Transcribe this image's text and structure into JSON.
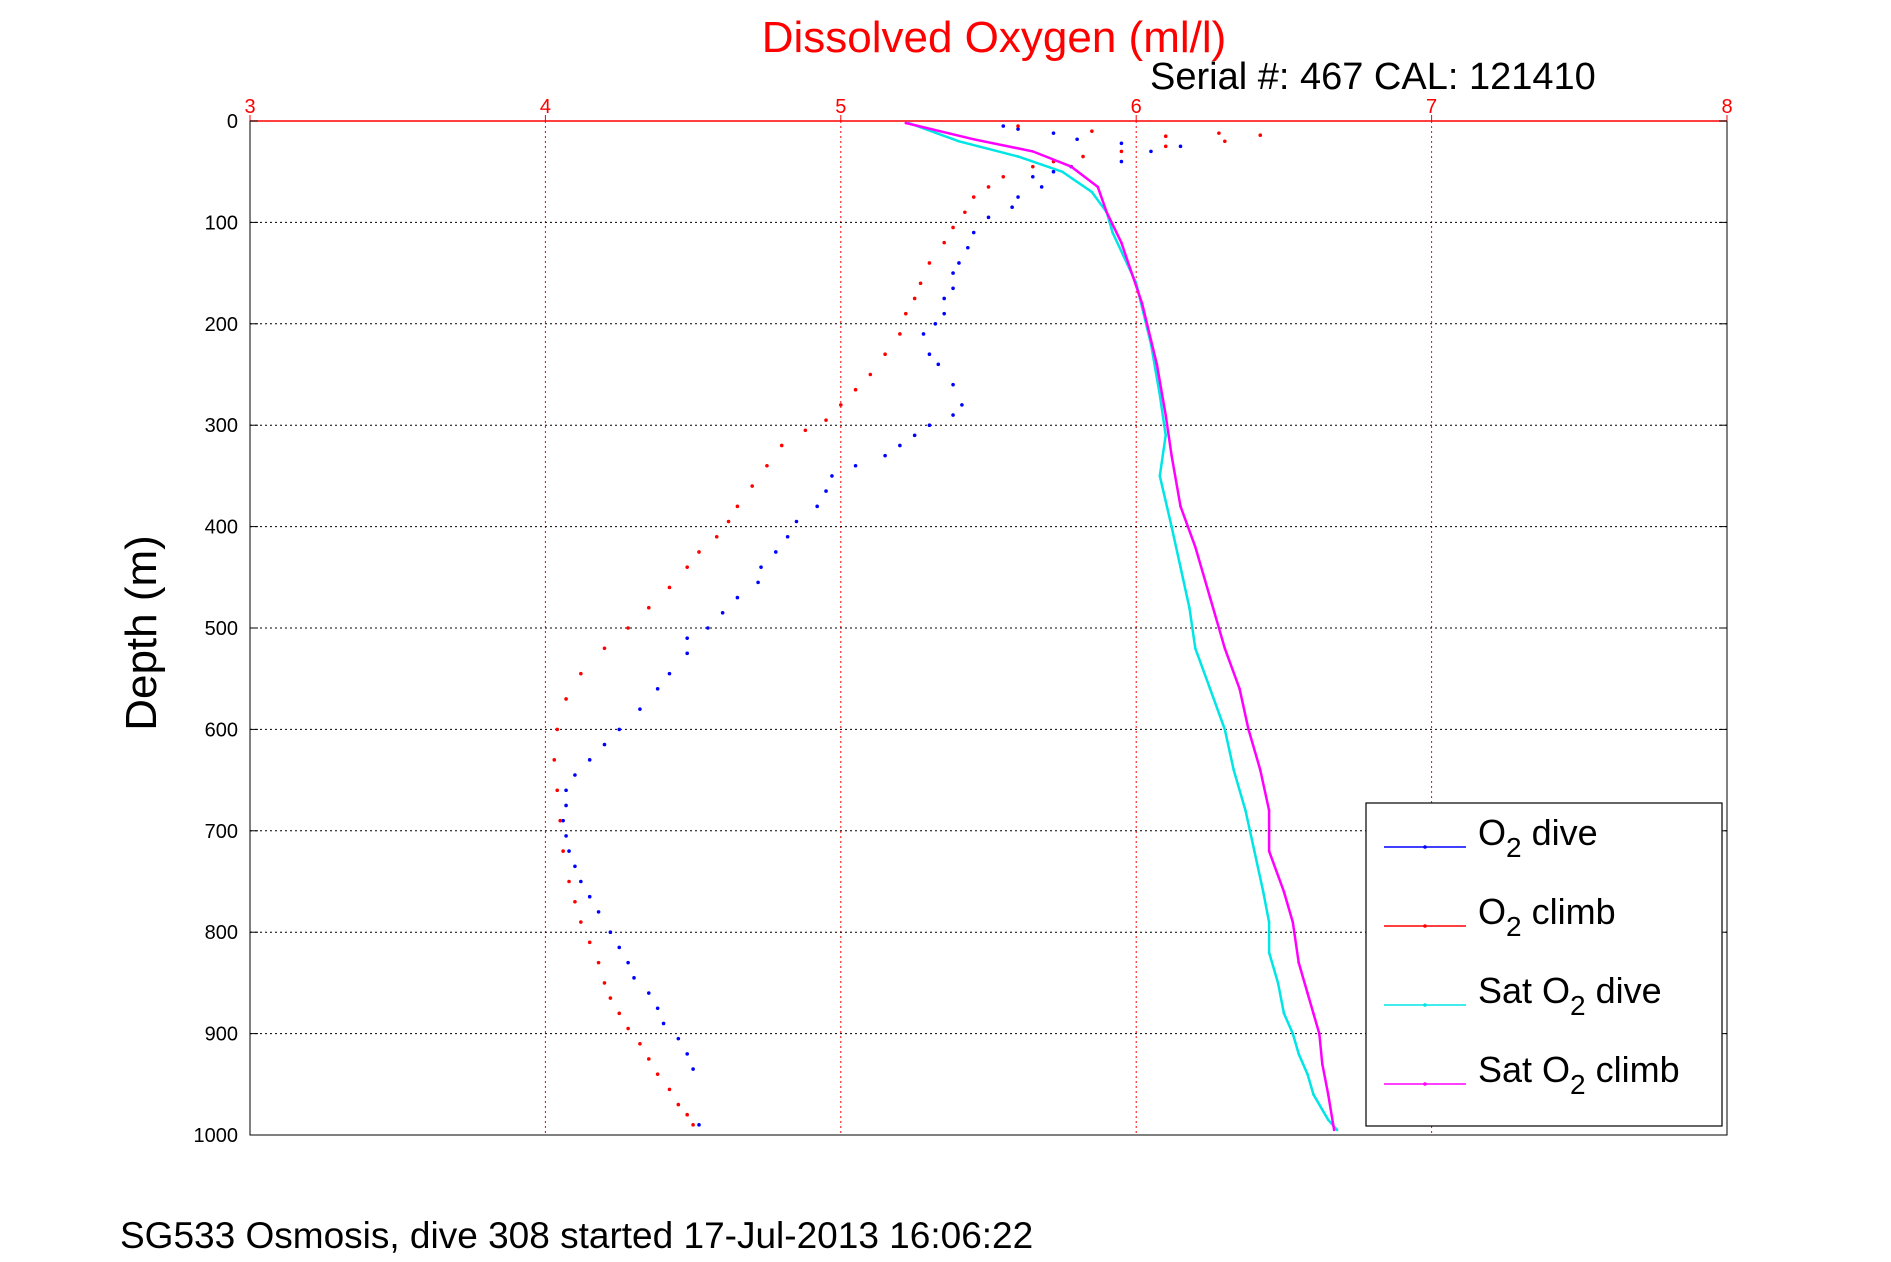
{
  "chart_data": {
    "type": "scatter",
    "title": "Dissolved Oxygen (ml/l)",
    "serial_label": "Serial #: 467  CAL: 121410",
    "footer": "SG533 Osmosis, dive 308 started 17-Jul-2013 16:06:22",
    "ylabel": "Depth (m)",
    "xlabel": "",
    "xlim": [
      3,
      8
    ],
    "ylim": [
      0,
      1000
    ],
    "y_reversed": true,
    "x_axis_position": "top",
    "xticks": [
      "3",
      "4",
      "5",
      "6",
      "7",
      "8"
    ],
    "yticks": [
      "0",
      "100",
      "200",
      "300",
      "400",
      "500",
      "600",
      "700",
      "800",
      "900",
      "1000"
    ],
    "grid": true,
    "legend_position": "bottom-right",
    "colors": {
      "title": "#ff0000",
      "x_axis": "#ff0000",
      "grid_x": "#ff0000",
      "grid_y": "#000000"
    },
    "series": [
      {
        "name": "O2 dive",
        "legend_main": "O",
        "legend_sub": "2",
        "legend_rest": " dive",
        "color": "#0000ff",
        "style": "dots",
        "x": [
          5.55,
          5.6,
          5.72,
          5.8,
          5.95,
          6.05,
          6.15,
          5.95,
          5.78,
          5.72,
          5.65,
          5.68,
          5.6,
          5.58,
          5.5,
          5.45,
          5.43,
          5.4,
          5.38,
          5.38,
          5.35,
          5.35,
          5.32,
          5.28,
          5.3,
          5.33,
          5.38,
          5.41,
          5.38,
          5.3,
          5.25,
          5.2,
          5.15,
          5.05,
          4.97,
          4.95,
          4.92,
          4.85,
          4.82,
          4.78,
          4.73,
          4.72,
          4.65,
          4.6,
          4.55,
          4.48,
          4.48,
          4.42,
          4.38,
          4.32,
          4.25,
          4.2,
          4.15,
          4.1,
          4.07,
          4.07,
          4.06,
          4.07,
          4.08,
          4.1,
          4.12,
          4.15,
          4.18,
          4.22,
          4.25,
          4.28,
          4.3,
          4.35,
          4.38,
          4.4,
          4.45,
          4.48,
          4.5,
          4.52
        ],
        "y": [
          5,
          8,
          12,
          18,
          22,
          30,
          25,
          40,
          45,
          50,
          55,
          65,
          75,
          85,
          95,
          110,
          125,
          140,
          150,
          165,
          175,
          190,
          200,
          210,
          230,
          240,
          260,
          280,
          290,
          300,
          310,
          320,
          330,
          340,
          350,
          365,
          380,
          395,
          410,
          425,
          440,
          455,
          470,
          485,
          500,
          510,
          525,
          545,
          560,
          580,
          600,
          615,
          630,
          645,
          660,
          675,
          690,
          705,
          720,
          735,
          750,
          765,
          780,
          800,
          815,
          830,
          845,
          860,
          875,
          890,
          905,
          920,
          935,
          990
        ]
      },
      {
        "name": "O2 climb",
        "legend_main": "O",
        "legend_sub": "2",
        "legend_rest": " climb",
        "color": "#ff0000",
        "style": "dots",
        "x": [
          5.6,
          5.85,
          6.1,
          6.28,
          6.42,
          6.3,
          6.1,
          5.95,
          5.82,
          5.72,
          5.65,
          5.55,
          5.5,
          5.45,
          5.42,
          5.38,
          5.35,
          5.3,
          5.27,
          5.25,
          5.22,
          5.2,
          5.15,
          5.1,
          5.05,
          5.0,
          4.95,
          4.88,
          4.8,
          4.75,
          4.7,
          4.65,
          4.62,
          4.58,
          4.52,
          4.48,
          4.42,
          4.35,
          4.28,
          4.2,
          4.12,
          4.07,
          4.04,
          4.03,
          4.04,
          4.05,
          4.06,
          4.08,
          4.1,
          4.12,
          4.15,
          4.18,
          4.2,
          4.22,
          4.25,
          4.28,
          4.32,
          4.35,
          4.38,
          4.42,
          4.45,
          4.48,
          4.5
        ],
        "y": [
          5,
          10,
          15,
          12,
          14,
          20,
          25,
          30,
          35,
          40,
          45,
          55,
          65,
          75,
          90,
          105,
          120,
          140,
          160,
          175,
          190,
          210,
          230,
          250,
          265,
          280,
          295,
          305,
          320,
          340,
          360,
          380,
          395,
          410,
          425,
          440,
          460,
          480,
          500,
          520,
          545,
          570,
          600,
          630,
          660,
          690,
          720,
          750,
          770,
          790,
          810,
          830,
          850,
          865,
          880,
          895,
          910,
          925,
          940,
          955,
          970,
          980,
          990
        ]
      },
      {
        "name": "Sat O2 dive",
        "legend_main": "Sat O",
        "legend_sub": "2",
        "legend_rest": " dive",
        "color": "#00e5e5",
        "style": "line",
        "x": [
          5.23,
          5.4,
          5.6,
          5.75,
          5.85,
          5.9,
          5.92,
          6.0,
          6.05,
          6.08,
          6.1,
          6.08,
          6.12,
          6.15,
          6.18,
          6.2,
          6.25,
          6.3,
          6.33,
          6.37,
          6.4,
          6.43,
          6.45,
          6.45,
          6.48,
          6.5,
          6.53,
          6.55,
          6.58,
          6.6,
          6.63,
          6.65,
          6.68
        ],
        "y": [
          2,
          20,
          35,
          50,
          70,
          90,
          110,
          160,
          220,
          270,
          310,
          350,
          400,
          440,
          480,
          520,
          560,
          600,
          640,
          680,
          720,
          760,
          790,
          820,
          850,
          880,
          900,
          920,
          940,
          960,
          975,
          985,
          995
        ]
      },
      {
        "name": "Sat O2 climb",
        "legend_main": "Sat O",
        "legend_sub": "2",
        "legend_rest": " climb",
        "color": "#ff00ff",
        "style": "line",
        "x": [
          5.22,
          5.45,
          5.65,
          5.78,
          5.87,
          5.9,
          5.95,
          6.02,
          6.07,
          6.1,
          6.12,
          6.15,
          6.2,
          6.25,
          6.3,
          6.35,
          6.38,
          6.42,
          6.45,
          6.45,
          6.5,
          6.53,
          6.55,
          6.58,
          6.6,
          6.62,
          6.63,
          6.65,
          6.67
        ],
        "y": [
          2,
          18,
          30,
          45,
          65,
          90,
          120,
          180,
          240,
          290,
          330,
          380,
          420,
          470,
          520,
          560,
          600,
          640,
          680,
          720,
          760,
          790,
          830,
          860,
          880,
          900,
          930,
          960,
          995
        ]
      }
    ]
  }
}
